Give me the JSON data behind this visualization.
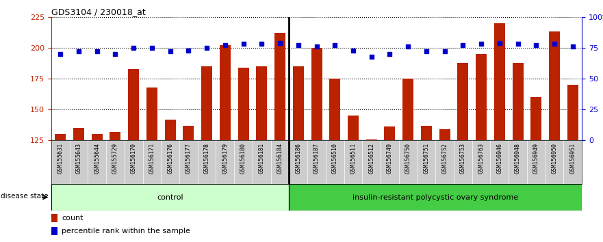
{
  "title": "GDS3104 / 230018_at",
  "samples": [
    "GSM155631",
    "GSM155643",
    "GSM155644",
    "GSM155729",
    "GSM156170",
    "GSM156171",
    "GSM156176",
    "GSM156177",
    "GSM156178",
    "GSM156179",
    "GSM156180",
    "GSM156181",
    "GSM156184",
    "GSM156186",
    "GSM156187",
    "GSM156510",
    "GSM156511",
    "GSM156512",
    "GSM156749",
    "GSM156750",
    "GSM156751",
    "GSM156752",
    "GSM156753",
    "GSM156763",
    "GSM156946",
    "GSM156948",
    "GSM156949",
    "GSM156950",
    "GSM156951"
  ],
  "bar_values": [
    130,
    135,
    130,
    132,
    183,
    168,
    142,
    137,
    185,
    202,
    184,
    185,
    212,
    185,
    200,
    175,
    145,
    126,
    136,
    175,
    137,
    134,
    188,
    195,
    220,
    188,
    160,
    213,
    170
  ],
  "scatter_values": [
    70,
    72,
    72,
    70,
    75,
    75,
    72,
    73,
    75,
    77,
    78,
    78,
    79,
    77,
    76,
    77,
    73,
    68,
    70,
    76,
    72,
    72,
    77,
    78,
    79,
    78,
    77,
    78,
    76
  ],
  "n_control": 13,
  "bar_color": "#bb2200",
  "scatter_color": "#0000cc",
  "ylim_left": [
    125,
    225
  ],
  "ylim_right": [
    0,
    100
  ],
  "yticks_left": [
    125,
    150,
    175,
    200,
    225
  ],
  "yticks_right": [
    0,
    25,
    50,
    75,
    100
  ],
  "ytick_labels_right": [
    "0",
    "25",
    "50",
    "75",
    "100%"
  ],
  "control_label": "control",
  "disease_label": "insulin-resistant polycystic ovary syndrome",
  "disease_state_label": "disease state",
  "legend_count": "count",
  "legend_pct": "percentile rank within the sample",
  "control_color": "#ccffcc",
  "disease_color": "#44cc44",
  "bg_color": "#cccccc",
  "tick_sep_color": "#888888"
}
